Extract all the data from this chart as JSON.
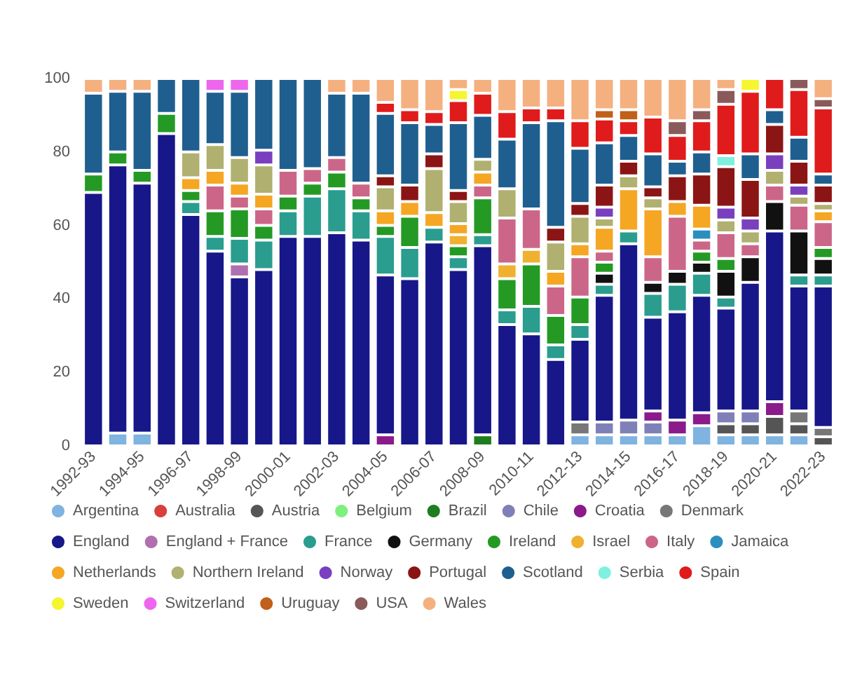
{
  "chart_data": {
    "type": "bar",
    "stacked": true,
    "categories": [
      "1992-93",
      null,
      "1994-95",
      null,
      "1996-97",
      null,
      "1998-99",
      null,
      "2000-01",
      null,
      "2002-03",
      null,
      "2004-05",
      null,
      "2006-07",
      null,
      "2008-09",
      null,
      "2010-11",
      null,
      "2012-13",
      null,
      "2014-15",
      null,
      "2016-17",
      null,
      "2018-19",
      null,
      "2020-21",
      null,
      "2022-23"
    ],
    "ylim": [
      0,
      100
    ],
    "yticks": [
      0,
      20,
      40,
      60,
      80,
      100
    ],
    "grid": false,
    "legend": "bottom",
    "series": [
      {
        "name": "Argentina",
        "color": "#7fb3e0",
        "values": [
          null,
          3.5,
          3.5,
          null,
          null,
          null,
          null,
          null,
          null,
          null,
          null,
          null,
          null,
          null,
          null,
          null,
          null,
          null,
          null,
          null,
          3,
          3,
          3,
          3,
          3,
          5.5,
          3,
          3,
          3,
          3,
          null
        ]
      },
      {
        "name": "Australia",
        "color": "#d9403c",
        "values": [
          null,
          null,
          null,
          null,
          null,
          null,
          null,
          null,
          null,
          null,
          null,
          null,
          null,
          null,
          null,
          null,
          null,
          null,
          null,
          null,
          null,
          null,
          null,
          null,
          null,
          null,
          null,
          null,
          null,
          null,
          null
        ]
      },
      {
        "name": "Austria",
        "color": "#555555",
        "values": [
          null,
          null,
          null,
          null,
          null,
          null,
          null,
          null,
          null,
          null,
          null,
          null,
          null,
          null,
          null,
          null,
          null,
          null,
          null,
          null,
          null,
          null,
          null,
          null,
          null,
          null,
          3,
          3,
          5,
          3,
          2.5
        ]
      },
      {
        "name": "Belgium",
        "color": "#7df07d",
        "values": [
          null,
          null,
          null,
          null,
          null,
          null,
          null,
          null,
          null,
          null,
          null,
          null,
          null,
          null,
          null,
          null,
          null,
          null,
          null,
          null,
          null,
          null,
          null,
          null,
          null,
          null,
          null,
          null,
          null,
          null,
          null
        ]
      },
      {
        "name": "Brazil",
        "color": "#1e7d1e",
        "values": [
          null,
          null,
          null,
          null,
          null,
          null,
          null,
          null,
          null,
          null,
          null,
          null,
          null,
          null,
          null,
          null,
          3,
          null,
          null,
          null,
          null,
          null,
          null,
          null,
          null,
          null,
          null,
          null,
          null,
          null,
          null
        ]
      },
      {
        "name": "Chile",
        "color": "#8080b8",
        "values": [
          null,
          null,
          null,
          null,
          null,
          null,
          null,
          null,
          null,
          null,
          null,
          null,
          null,
          null,
          null,
          null,
          null,
          null,
          null,
          null,
          null,
          3.5,
          4,
          3.5,
          null,
          null,
          3.5,
          3.5,
          null,
          null,
          null
        ]
      },
      {
        "name": "Croatia",
        "color": "#8b1a8b",
        "values": [
          null,
          null,
          null,
          null,
          null,
          null,
          null,
          null,
          null,
          null,
          null,
          null,
          3,
          null,
          null,
          null,
          null,
          null,
          null,
          null,
          null,
          null,
          null,
          3,
          4,
          3.5,
          null,
          null,
          4,
          null,
          null
        ]
      },
      {
        "name": "Denmark",
        "color": "#777777",
        "values": [
          null,
          null,
          null,
          null,
          null,
          null,
          null,
          null,
          null,
          null,
          null,
          null,
          null,
          null,
          null,
          null,
          null,
          null,
          null,
          null,
          3.5,
          null,
          null,
          null,
          null,
          null,
          null,
          null,
          null,
          3.5,
          2.5
        ]
      },
      {
        "name": "England",
        "color": "#17178a",
        "values": [
          69,
          73,
          68,
          85,
          63,
          53,
          46,
          48,
          57,
          57,
          58,
          56,
          43.5,
          45.5,
          55.5,
          48,
          51.5,
          33,
          30.5,
          23.5,
          22.5,
          34.5,
          48,
          25.5,
          29.5,
          32,
          28,
          35,
          46.5,
          34,
          38.5
        ]
      },
      {
        "name": "England + France",
        "color": "#b070b0",
        "values": [
          null,
          null,
          null,
          null,
          null,
          null,
          3.5,
          null,
          null,
          null,
          null,
          null,
          null,
          null,
          null,
          null,
          null,
          null,
          null,
          null,
          null,
          null,
          null,
          null,
          null,
          null,
          null,
          null,
          null,
          null,
          null
        ]
      },
      {
        "name": "France",
        "color": "#2a9d8f",
        "values": [
          null,
          null,
          null,
          null,
          3.5,
          4,
          7,
          8,
          7,
          11,
          12,
          8,
          10.5,
          8.5,
          4,
          3.5,
          3,
          4,
          7.5,
          4,
          4,
          3,
          3.5,
          6.5,
          7.5,
          6,
          3,
          null,
          null,
          3,
          3
        ]
      },
      {
        "name": "Germany",
        "color": "#111111",
        "values": [
          null,
          null,
          null,
          null,
          null,
          null,
          null,
          null,
          null,
          null,
          null,
          null,
          null,
          null,
          null,
          null,
          null,
          null,
          null,
          null,
          null,
          3,
          null,
          3,
          3.5,
          3,
          7,
          7,
          8,
          12,
          4.5
        ]
      },
      {
        "name": "Ireland",
        "color": "#249a24",
        "values": [
          5,
          3.5,
          3.5,
          5.5,
          3,
          7,
          8,
          4,
          4,
          3.5,
          4.5,
          3.5,
          3,
          8.5,
          null,
          3,
          10,
          8.5,
          11.5,
          8,
          7.5,
          3,
          null,
          null,
          null,
          3,
          3.5,
          null,
          null,
          null,
          3
        ]
      },
      {
        "name": "Israel",
        "color": "#f0b030",
        "values": [
          null,
          null,
          null,
          null,
          null,
          null,
          null,
          null,
          null,
          null,
          null,
          null,
          null,
          null,
          null,
          3,
          null,
          4,
          4,
          null,
          null,
          null,
          null,
          null,
          null,
          null,
          null,
          null,
          null,
          null,
          null
        ]
      },
      {
        "name": "Italy",
        "color": "#cc6688",
        "values": [
          null,
          null,
          null,
          null,
          null,
          7,
          3.5,
          4.5,
          7,
          4,
          4,
          4,
          null,
          null,
          null,
          null,
          3.5,
          12.5,
          11,
          8,
          11,
          3,
          null,
          7,
          15,
          3,
          7,
          3.5,
          4.5,
          7,
          7
        ]
      },
      {
        "name": "Jamaica",
        "color": "#2a8fbf",
        "values": [
          null,
          null,
          null,
          null,
          null,
          null,
          null,
          null,
          null,
          null,
          null,
          null,
          null,
          null,
          null,
          null,
          null,
          null,
          null,
          null,
          null,
          null,
          null,
          null,
          null,
          3,
          null,
          null,
          null,
          null,
          null
        ]
      },
      {
        "name": "Netherlands",
        "color": "#f5a623",
        "values": [
          null,
          null,
          null,
          null,
          3.5,
          4,
          3.5,
          4,
          null,
          null,
          null,
          null,
          4,
          4,
          4,
          3,
          3.5,
          null,
          null,
          4,
          3.5,
          6.5,
          11.5,
          13,
          4,
          6.5,
          null,
          null,
          null,
          null,
          3
        ]
      },
      {
        "name": "Northern Ireland",
        "color": "#b0b070",
        "values": [
          null,
          null,
          null,
          null,
          7,
          7,
          7,
          8,
          null,
          null,
          null,
          null,
          6.5,
          null,
          12,
          6,
          3.5,
          8,
          null,
          8,
          7.5,
          2.5,
          3.5,
          3,
          null,
          null,
          3.5,
          3.5,
          4,
          2.5,
          2
        ]
      },
      {
        "name": "Norway",
        "color": "#7a3fbf",
        "values": [
          null,
          null,
          null,
          null,
          null,
          null,
          null,
          4,
          null,
          null,
          null,
          null,
          null,
          null,
          null,
          null,
          null,
          null,
          null,
          null,
          null,
          3,
          null,
          null,
          null,
          null,
          3.5,
          3.5,
          4.5,
          3,
          null
        ]
      },
      {
        "name": "Portugal",
        "color": "#8b1515",
        "values": [
          null,
          null,
          null,
          null,
          null,
          null,
          null,
          null,
          null,
          null,
          null,
          null,
          3,
          4.5,
          4,
          3,
          null,
          null,
          null,
          4,
          3.5,
          6,
          4,
          3,
          7,
          8.5,
          11,
          10.5,
          8,
          6.5,
          5
        ]
      },
      {
        "name": "Scotland",
        "color": "#1f5f8f",
        "values": [
          22,
          16.5,
          21.5,
          9.5,
          20,
          14.5,
          18,
          19.5,
          25,
          24.5,
          17.5,
          24.5,
          17,
          17,
          8,
          18.5,
          12,
          13.5,
          23.5,
          29,
          15,
          11.5,
          7,
          9,
          4,
          6,
          null,
          7,
          4,
          6.5,
          3
        ]
      },
      {
        "name": "Serbia",
        "color": "#7ff0e0",
        "values": [
          null,
          null,
          null,
          null,
          null,
          null,
          null,
          null,
          null,
          null,
          null,
          null,
          null,
          null,
          null,
          null,
          null,
          null,
          null,
          null,
          null,
          null,
          null,
          null,
          null,
          null,
          3,
          null,
          null,
          null,
          null
        ]
      },
      {
        "name": "Spain",
        "color": "#e01b1b",
        "values": [
          null,
          null,
          null,
          null,
          null,
          null,
          null,
          null,
          null,
          null,
          null,
          null,
          3,
          3.5,
          3.5,
          6,
          6,
          7.5,
          4,
          3.5,
          7.5,
          6.5,
          4,
          10,
          7,
          8.5,
          14,
          17,
          8.5,
          13,
          18
        ]
      },
      {
        "name": "Sweden",
        "color": "#f5f530",
        "values": [
          null,
          null,
          null,
          null,
          null,
          null,
          null,
          null,
          null,
          null,
          null,
          null,
          null,
          null,
          null,
          3,
          null,
          null,
          null,
          null,
          null,
          null,
          null,
          null,
          null,
          null,
          null,
          3.5,
          null,
          null,
          null
        ]
      },
      {
        "name": "Switzerland",
        "color": "#ee66ee",
        "values": [
          null,
          null,
          null,
          null,
          null,
          3.5,
          3.5,
          null,
          null,
          null,
          null,
          null,
          null,
          null,
          null,
          null,
          null,
          null,
          null,
          null,
          null,
          null,
          null,
          null,
          null,
          null,
          null,
          null,
          null,
          null,
          null
        ]
      },
      {
        "name": "Uruguay",
        "color": "#c0601a",
        "values": [
          null,
          null,
          null,
          null,
          null,
          null,
          null,
          null,
          null,
          null,
          null,
          null,
          null,
          null,
          null,
          null,
          null,
          null,
          null,
          null,
          null,
          2.5,
          3,
          null,
          null,
          null,
          null,
          null,
          null,
          null,
          null
        ]
      },
      {
        "name": "USA",
        "color": "#8a5a5a",
        "values": [
          null,
          null,
          null,
          null,
          null,
          null,
          null,
          null,
          null,
          null,
          null,
          null,
          null,
          null,
          null,
          null,
          null,
          null,
          null,
          null,
          null,
          null,
          null,
          null,
          4,
          3,
          4,
          null,
          null,
          3,
          2.5
        ]
      },
      {
        "name": "Wales",
        "color": "#f5b080",
        "values": [
          4,
          3.5,
          3.5,
          null,
          null,
          null,
          null,
          null,
          null,
          null,
          4,
          4,
          6.5,
          8.5,
          9,
          3,
          4,
          9,
          8,
          8,
          11.5,
          8.5,
          8.5,
          10.5,
          11.5,
          8.5,
          3,
          null,
          null,
          null,
          5.5
        ]
      }
    ]
  }
}
